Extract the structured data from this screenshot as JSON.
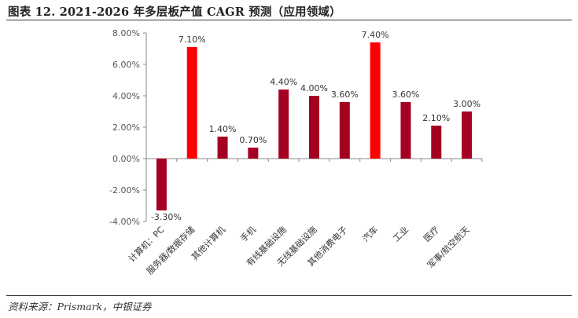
{
  "header": {
    "title": "图表 12. 2021-2026 年多层板产值 CAGR 预测（应用领域）"
  },
  "footer": {
    "source": "资料来源：Prismark，中银证券"
  },
  "chart_data": {
    "type": "bar",
    "categories": [
      "计算机：PC",
      "服务器/数据存储",
      "其他计算机",
      "手机",
      "有线基础设施",
      "无线基础设施",
      "其他消费电子",
      "汽车",
      "工业",
      "医疗",
      "军事/航空航天"
    ],
    "values": [
      -3.3,
      7.1,
      1.4,
      0.7,
      4.4,
      4.0,
      3.6,
      7.4,
      3.6,
      2.1,
      3.0
    ],
    "data_labels": [
      "-3.30%",
      "7.10%",
      "1.40%",
      "0.70%",
      "4.40%",
      "4.00%",
      "3.60%",
      "7.40%",
      "3.60%",
      "2.10%",
      "3.00%"
    ],
    "highlight": [
      false,
      true,
      false,
      false,
      false,
      false,
      false,
      true,
      false,
      false,
      false
    ],
    "y_ticks": [
      8,
      6,
      4,
      2,
      0,
      -2,
      -4
    ],
    "y_tick_labels": [
      "8.00%",
      "6.00%",
      "4.00%",
      "2.00%",
      "0.00%",
      "-2.00%",
      "-4.00%"
    ],
    "ylim": [
      -4,
      8
    ],
    "title": "",
    "xlabel": "",
    "ylabel": "",
    "grid": false,
    "legend": "none",
    "colors": {
      "normal": "#A50021",
      "highlight": "#FF0000",
      "axis": "#888888"
    }
  }
}
